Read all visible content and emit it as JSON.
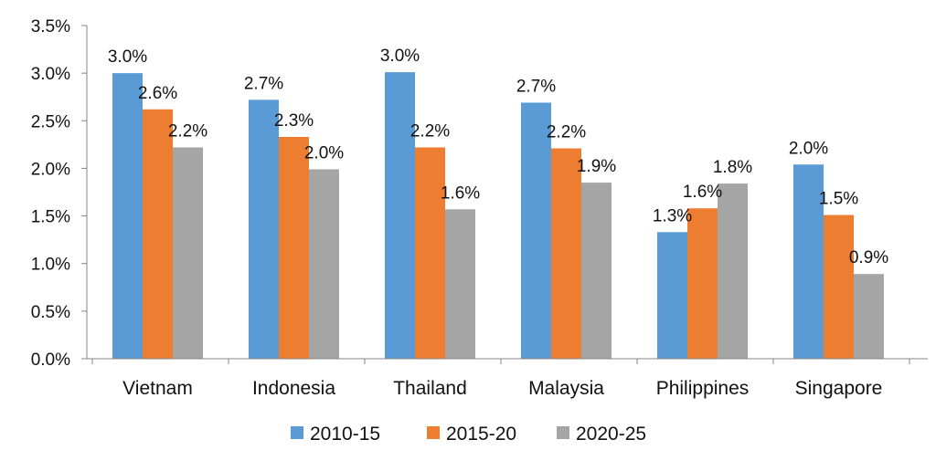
{
  "chart_data": {
    "type": "bar",
    "title": "",
    "xlabel": "",
    "ylabel": "",
    "categories": [
      "Vietnam",
      "Indonesia",
      "Thailand",
      "Malaysia",
      "Philippines",
      "Singapore"
    ],
    "series": [
      {
        "name": "2010-15",
        "color": "#5B9BD5",
        "values": [
          3.0,
          2.72,
          3.01,
          2.69,
          1.33,
          2.04
        ],
        "labels": [
          "3.0%",
          "2.7%",
          "3.0%",
          "2.7%",
          "1.3%",
          "2.0%"
        ]
      },
      {
        "name": "2015-20",
        "color": "#ED7D31",
        "values": [
          2.62,
          2.33,
          2.22,
          2.21,
          1.58,
          1.51
        ],
        "labels": [
          "2.6%",
          "2.3%",
          "2.2%",
          "2.2%",
          "1.6%",
          "1.5%"
        ]
      },
      {
        "name": "2020-25",
        "color": "#A5A5A5",
        "values": [
          2.22,
          1.99,
          1.57,
          1.85,
          1.84,
          0.89
        ],
        "labels": [
          "2.2%",
          "2.0%",
          "1.6%",
          "1.9%",
          "1.8%",
          "0.9%"
        ]
      }
    ],
    "ylim": [
      0,
      3.5
    ],
    "yticks": [
      0,
      0.5,
      1.0,
      1.5,
      2.0,
      2.5,
      3.0,
      3.5
    ],
    "ytick_labels": [
      "0.0%",
      "0.5%",
      "1.0%",
      "1.5%",
      "2.0%",
      "2.5%",
      "3.0%",
      "3.5%"
    ],
    "grid": false,
    "legend_position": "bottom"
  }
}
